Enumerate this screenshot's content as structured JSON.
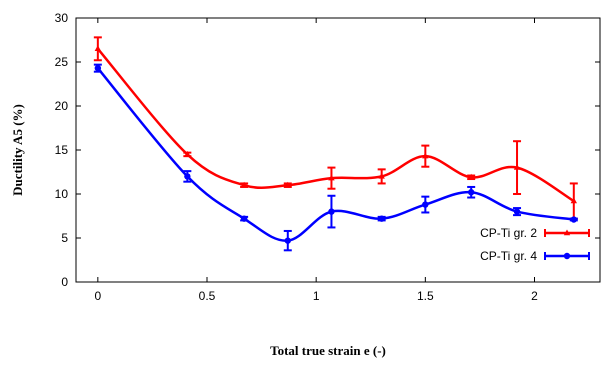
{
  "chart_data": {
    "type": "line",
    "title": "",
    "xlabel": "Total true strain e  (-)",
    "ylabel": "Ductility A5 (%)",
    "xlim": [
      -0.1,
      2.3
    ],
    "ylim": [
      0,
      30
    ],
    "xticks": [
      0,
      0.5,
      1,
      1.5,
      2
    ],
    "xtick_labels": [
      "0",
      "0.5",
      "1",
      "1.5",
      "2"
    ],
    "yticks": [
      0,
      5,
      10,
      15,
      20,
      25,
      30
    ],
    "ytick_labels": [
      "0",
      "5",
      "10",
      "15",
      "20",
      "25",
      "30"
    ],
    "grid": false,
    "legend_position": "bottom-right",
    "series": [
      {
        "name": "CP-Ti gr. 2",
        "color": "#ff0000",
        "marker": "triangle",
        "x": [
          0,
          0.41,
          0.67,
          0.87,
          1.07,
          1.3,
          1.5,
          1.71,
          1.92,
          2.18
        ],
        "y": [
          26.5,
          14.5,
          11.0,
          11.0,
          11.8,
          12.0,
          14.3,
          11.9,
          13.0,
          9.2
        ],
        "err": [
          1.3,
          0.2,
          0.2,
          0.2,
          1.2,
          0.8,
          1.2,
          0.2,
          3.0,
          2.0
        ]
      },
      {
        "name": "CP-Ti gr. 4",
        "color": "#0000ff",
        "marker": "circle",
        "x": [
          0,
          0.41,
          0.67,
          0.87,
          1.07,
          1.3,
          1.5,
          1.71,
          1.92,
          2.18
        ],
        "y": [
          24.3,
          12.0,
          7.2,
          4.7,
          8.0,
          7.2,
          8.8,
          10.2,
          8.0,
          7.1
        ],
        "err": [
          0.4,
          0.6,
          0.2,
          1.1,
          1.8,
          0.2,
          0.9,
          0.6,
          0.4,
          0.1
        ]
      }
    ]
  }
}
